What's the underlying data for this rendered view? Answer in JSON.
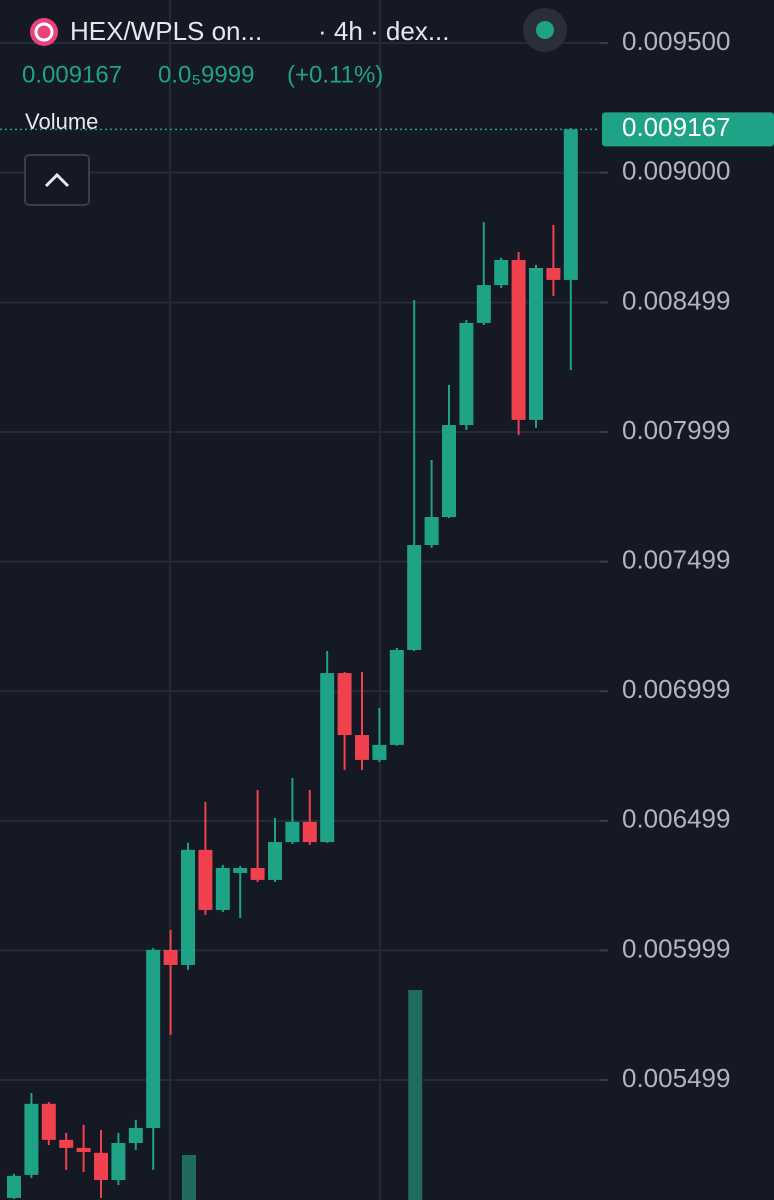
{
  "header": {
    "symbol": "HEX/WPLS on...",
    "interval": "· 4h · dex...",
    "change": "0.0₅9999",
    "change_percent": "(+0.11%)"
  },
  "chart_data": {
    "type": "candlestick",
    "up_color": "#1fa386",
    "down_color": "#f0414f",
    "last_price": 0.009167,
    "volume_label": "Volume",
    "ylim": [
      0.005036,
      0.009666
    ],
    "yticks": [
      {
        "value": 0.0095,
        "label": "0.009500"
      },
      {
        "value": 0.009,
        "label": "0.009000"
      },
      {
        "value": 0.008499,
        "label": "0.008499"
      },
      {
        "value": 0.007999,
        "label": "0.007999"
      },
      {
        "value": 0.007499,
        "label": "0.007499"
      },
      {
        "value": 0.006999,
        "label": "0.006999"
      },
      {
        "value": 0.006499,
        "label": "0.006499"
      },
      {
        "value": 0.005999,
        "label": "0.005999"
      },
      {
        "value": 0.005499,
        "label": "0.005499"
      }
    ],
    "grid": true,
    "open": [
      0.005044,
      0.005133,
      0.005407,
      0.005268,
      0.005237,
      0.005218,
      0.005113,
      0.005256,
      0.005314,
      0.006001,
      0.005943,
      0.006387,
      0.006155,
      0.006298,
      0.006317,
      0.006271,
      0.006417,
      0.006495,
      0.006417,
      0.007069,
      0.00683,
      0.006734,
      0.006792,
      0.007158,
      0.007563,
      0.007671,
      0.008026,
      0.00842,
      0.008566,
      0.008663,
      0.008046,
      0.008632,
      0.008586
    ],
    "high": [
      0.005137,
      0.005449,
      0.005414,
      0.005295,
      0.005326,
      0.005306,
      0.005295,
      0.005345,
      0.006009,
      0.006078,
      0.006414,
      0.006572,
      0.006329,
      0.006325,
      0.006618,
      0.00651,
      0.006664,
      0.006618,
      0.007154,
      0.007073,
      0.007073,
      0.006934,
      0.007166,
      0.008508,
      0.007891,
      0.008181,
      0.008431,
      0.008809,
      0.008671,
      0.008694,
      0.008644,
      0.008798,
      0.009172
    ],
    "low": [
      0.00504,
      0.005121,
      0.005248,
      0.005152,
      0.005144,
      0.005044,
      0.005094,
      0.005229,
      0.005152,
      0.005673,
      0.005924,
      0.006136,
      0.006147,
      0.006124,
      0.006263,
      0.006263,
      0.00641,
      0.006406,
      0.006414,
      0.006695,
      0.006695,
      0.006726,
      0.006788,
      0.007154,
      0.007552,
      0.007667,
      0.008007,
      0.008412,
      0.008555,
      0.007988,
      0.008015,
      0.008524,
      0.008238
    ],
    "close": [
      0.005129,
      0.005407,
      0.005268,
      0.005237,
      0.005221,
      0.005113,
      0.005256,
      0.005314,
      0.006001,
      0.005943,
      0.006387,
      0.006155,
      0.006317,
      0.006317,
      0.006271,
      0.006417,
      0.006495,
      0.006417,
      0.007069,
      0.00683,
      0.006734,
      0.006792,
      0.007158,
      0.007563,
      0.007671,
      0.008026,
      0.00842,
      0.008566,
      0.008663,
      0.008046,
      0.008632,
      0.008586,
      0.009167
    ],
    "volume": [
      null,
      null,
      null,
      null,
      null,
      null,
      null,
      null,
      null,
      null,
      45,
      null,
      null,
      null,
      null,
      null,
      null,
      null,
      null,
      null,
      null,
      null,
      null,
      210,
      null,
      null,
      null,
      null,
      null,
      null,
      null,
      null,
      null
    ],
    "volume_lim": [
      0,
      1200
    ],
    "volume_color": "#1f6b5c"
  }
}
